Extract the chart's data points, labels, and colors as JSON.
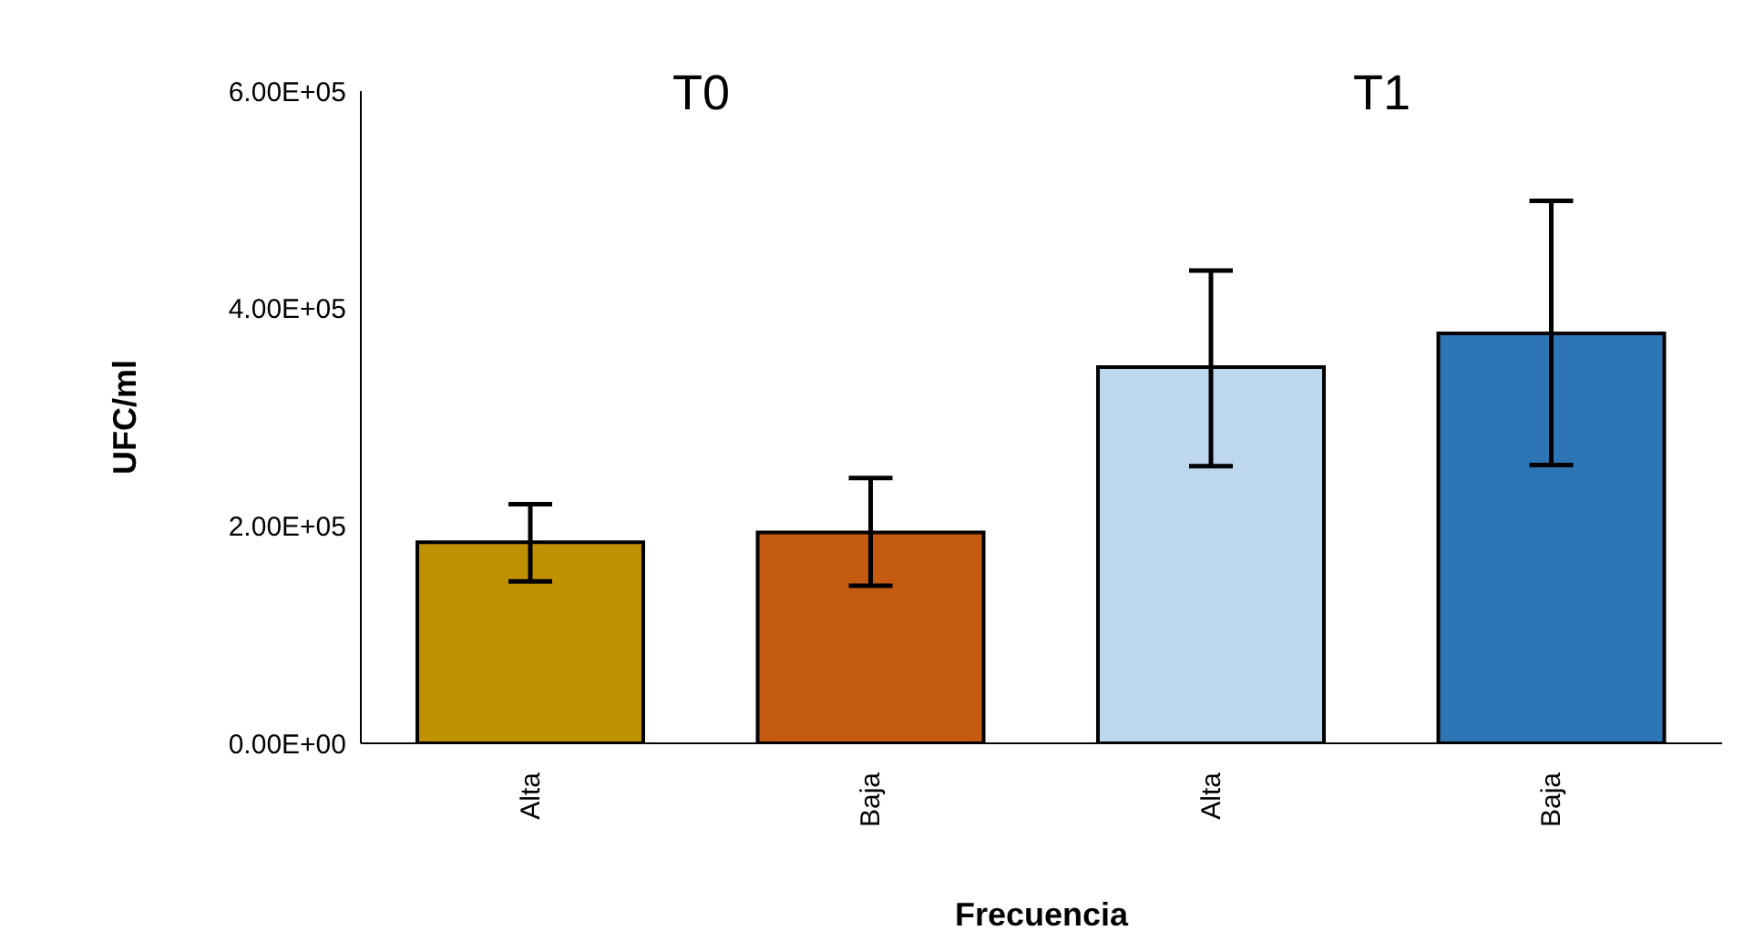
{
  "chart_data": {
    "type": "bar",
    "xlabel": "Frecuencia",
    "ylabel": "UFC/ml",
    "categories": [
      "Alta",
      "Baja",
      "Alta",
      "Baja"
    ],
    "values": [
      185000,
      194000,
      346000,
      377000
    ],
    "colors": [
      "#bf9000",
      "#c55a11",
      "#bdd7ee",
      "#2e75b6"
    ],
    "errors": [
      [
        149000,
        220000
      ],
      [
        145000,
        244000
      ],
      [
        255000,
        435000
      ],
      [
        256000,
        499000
      ]
    ],
    "ylim": [
      0,
      600000
    ],
    "yticks": [
      {
        "value": 0,
        "label": "0.00E+00"
      },
      {
        "value": 200000,
        "label": "2.00E+05"
      },
      {
        "value": 400000,
        "label": "4.00E+05"
      },
      {
        "value": 600000,
        "label": "6.00E+05"
      }
    ],
    "annotations": [
      "T0",
      "T1"
    ],
    "grid": false,
    "legend": false
  }
}
